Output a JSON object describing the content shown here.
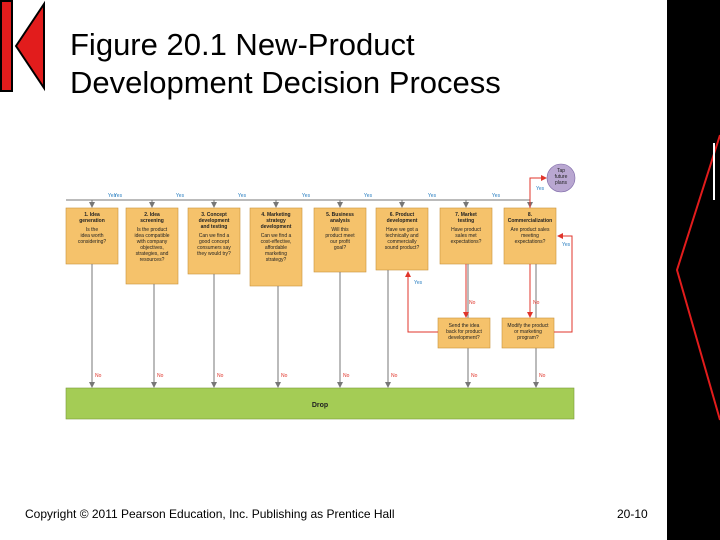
{
  "slide": {
    "title_line1": "Figure 20.1 New-Product",
    "title_line2": "Development Decision Process",
    "copyright": "Copyright © 2011 Pearson Education, Inc.  Publishing as Prentice Hall",
    "page_number": "20-10"
  },
  "diagram": {
    "steps": [
      {
        "title": [
          "1. Idea",
          "generation"
        ],
        "question": [
          "Is the",
          "idea worth",
          "considering?"
        ]
      },
      {
        "title": [
          "2. Idea",
          "screening"
        ],
        "question": [
          "Is the product",
          "idea compatible",
          "with company",
          "objectives,",
          "strategies, and",
          "resources?"
        ]
      },
      {
        "title": [
          "3. Concept",
          "development",
          "and testing"
        ],
        "question": [
          "Can we find a",
          "good concept",
          "consumers say",
          "they would try?"
        ]
      },
      {
        "title": [
          "4. Marketing",
          "strategy",
          "development"
        ],
        "question": [
          "Can we find a",
          "cost-effective,",
          "affordable",
          "marketing",
          "strategy?"
        ]
      },
      {
        "title": [
          "5. Business",
          "analysis"
        ],
        "question": [
          "Will this",
          "product meet",
          "our profit",
          "goal?"
        ]
      },
      {
        "title": [
          "6. Product",
          "development"
        ],
        "question": [
          "Have we got a",
          "technically and",
          "commercially",
          "sound product?"
        ]
      },
      {
        "title": [
          "7. Market",
          "testing"
        ],
        "question": [
          "Have product",
          "sales met",
          "expectations?"
        ]
      },
      {
        "title": [
          "8.",
          "Commercialization"
        ],
        "question": [
          "Are product sales",
          "meeting",
          "expectations?"
        ]
      }
    ],
    "feedback_left": [
      "Send the idea",
      "back for product",
      "development?"
    ],
    "feedback_right": [
      "Modify the product",
      "or marketing",
      "program?"
    ],
    "future_plans": [
      "Tap",
      "future",
      "plans"
    ],
    "yes_label": "Yes",
    "no_label": "No",
    "drop_label": "Drop"
  },
  "colors": {
    "box_fill": "#f5c26b",
    "drop_fill": "#a4cc55",
    "future_fill": "#b9a7d1",
    "arrow_gray": "#777777",
    "arrow_red": "#e0352b",
    "label_blue": "#2a7fc1",
    "logo_red": "#e21c1c"
  }
}
